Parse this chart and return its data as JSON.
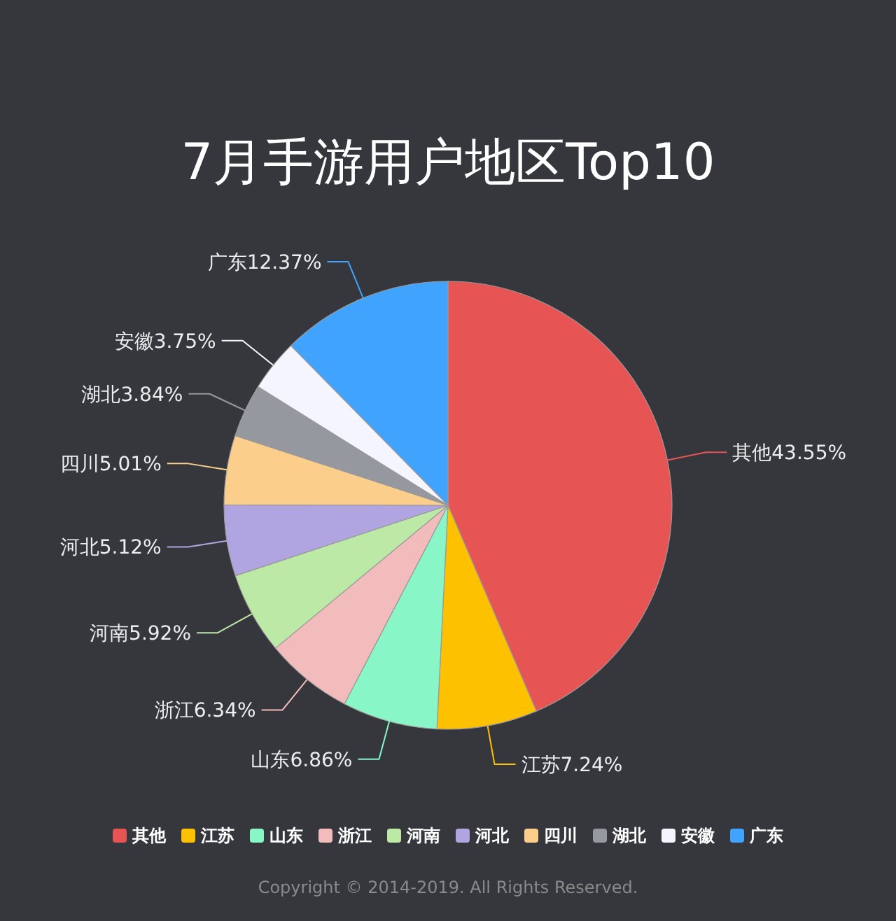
{
  "chart_data": {
    "type": "pie",
    "title": "7月手游用户地区Top10",
    "categories": [
      "其他",
      "江苏",
      "山东",
      "浙江",
      "河南",
      "河北",
      "四川",
      "湖北",
      "安徽",
      "广东"
    ],
    "values": [
      43.55,
      7.24,
      6.86,
      6.34,
      5.92,
      5.12,
      5.01,
      3.84,
      3.75,
      12.37
    ],
    "colors": [
      "#e75454",
      "#fec100",
      "#88f6c6",
      "#f2bcbc",
      "#bde9a6",
      "#b0a5e1",
      "#fbcf8b",
      "#95989f",
      "#f5f5ff",
      "#40a4ff"
    ],
    "value_labels": [
      "43.55%",
      "7.24%",
      "6.86%",
      "6.34%",
      "5.92%",
      "5.12%",
      "5.01%",
      "3.84%",
      "3.75%",
      "12.37%"
    ],
    "legend": "bottom",
    "annotations": [
      "Copyright © 2014-2019. All Rights Reserved."
    ]
  }
}
